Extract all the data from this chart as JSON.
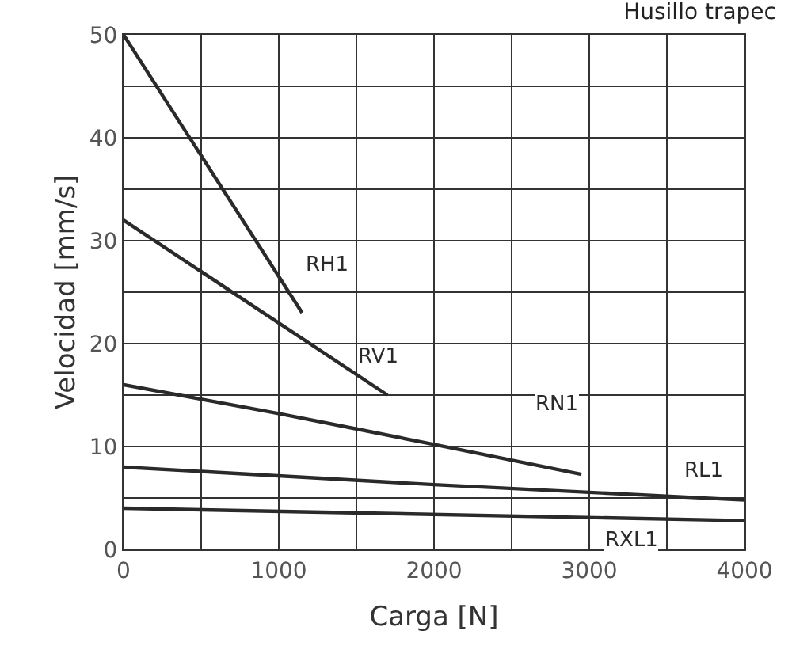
{
  "chart_data": {
    "type": "line",
    "title": "Husillo trapec",
    "xlabel": "Carga [N]",
    "ylabel": "Velocidad [mm/s]",
    "xlim": [
      0,
      4000
    ],
    "xticks": [
      0,
      1000,
      2000,
      3000,
      4000
    ],
    "ylim": [
      0,
      50
    ],
    "yticks": [
      0,
      10,
      20,
      30,
      40,
      50
    ],
    "grid": true,
    "legend": false,
    "marker": "none",
    "line_style": "solid",
    "series": [
      {
        "name": "RH1",
        "color": "#2a2a2a",
        "x": [
          0,
          1150
        ],
        "values": [
          50,
          23
        ]
      },
      {
        "name": "RV1",
        "color": "#2a2a2a",
        "x": [
          0,
          1700
        ],
        "values": [
          32,
          15
        ]
      },
      {
        "name": "RN1",
        "color": "#2a2a2a",
        "x": [
          0,
          1000,
          2000,
          2950
        ],
        "values": [
          16,
          13.2,
          10.2,
          7.3
        ]
      },
      {
        "name": "RL1",
        "color": "#2a2a2a",
        "x": [
          0,
          2000,
          4000
        ],
        "values": [
          8,
          6.3,
          4.8
        ]
      },
      {
        "name": "RXL1",
        "color": "#2a2a2a",
        "x": [
          0,
          4000
        ],
        "values": [
          4,
          2.8
        ]
      }
    ]
  }
}
